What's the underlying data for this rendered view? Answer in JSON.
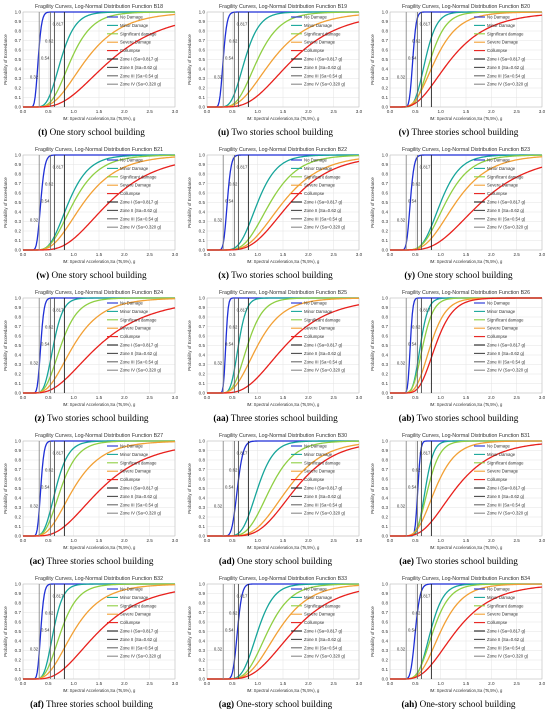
{
  "figure": {
    "common": {
      "xlabel": "IM: Spectral Acceleration,Sa (Ts,5%), g",
      "ylabel": "Probability of Exceedance",
      "xlim": [
        0,
        3
      ],
      "ylim": [
        0,
        1
      ],
      "xticks": [
        "0.0",
        "0.5",
        "1.0",
        "1.5",
        "2.0",
        "2.5",
        "3.0"
      ],
      "yticks": [
        "0.0",
        "0.1",
        "0.2",
        "0.3",
        "0.4",
        "0.5",
        "0.6",
        "0.7",
        "0.8",
        "0.9",
        "1.0"
      ],
      "legend": [
        "No Damage",
        "Minor Damage",
        "Significant damage",
        "Severe Damage",
        "Collumpse",
        "Zone I (Sa=0.817 g)",
        "Zone II (Sa=0.62 g)",
        "Zone III (Sa=0.54 g)",
        "Zone IV (Sa=0.320 g)"
      ],
      "zone_values": [
        0.817,
        0.62,
        0.54,
        0.32
      ],
      "zone_labels": [
        "0.817",
        "0.62",
        "0.54",
        "0.32"
      ],
      "colors": {
        "no_damage": "#1f2fd6",
        "minor": "#17a59a",
        "significant": "#8fcf43",
        "severe": "#f2a035",
        "collapse": "#e8201c",
        "zone1": "#222222",
        "zone2": "#4a4a4a",
        "zone3": "#6a6a6a",
        "zone4": "#8a8a8a"
      }
    }
  },
  "chart_data": [
    {
      "type": "line",
      "title": "Fragility Curves, Log-Normal Distribution Function B18",
      "caption_letter": "(t)",
      "caption_text": " One story school building",
      "medians": [
        0.3,
        0.75,
        0.95,
        1.25,
        1.75
      ],
      "betas": [
        0.18,
        0.3,
        0.35,
        0.45,
        0.5
      ]
    },
    {
      "type": "line",
      "title": "Fragility Curves, Log-Normal Distribution Function B19",
      "caption_letter": "(u)",
      "caption_text": " Two stories school building",
      "medians": [
        0.32,
        0.75,
        1.0,
        1.3,
        1.7
      ],
      "betas": [
        0.18,
        0.3,
        0.35,
        0.45,
        0.45
      ]
    },
    {
      "type": "line",
      "title": "Fragility Curves, Log-Normal Distribution Function B20",
      "caption_letter": "(v)",
      "caption_text": " Three stories school building",
      "medians": [
        0.45,
        0.7,
        0.8,
        0.9,
        1.2
      ],
      "betas": [
        0.12,
        0.25,
        0.3,
        0.4,
        0.5
      ]
    },
    {
      "type": "line",
      "title": "Fragility Curves, Log-Normal Distribution Function B21",
      "caption_letter": "(w)",
      "caption_text": " One story school building",
      "medians": [
        0.35,
        0.9,
        1.0,
        1.2,
        1.7
      ],
      "betas": [
        0.18,
        0.35,
        0.4,
        0.45,
        0.45
      ]
    },
    {
      "type": "line",
      "title": "Fragility Curves, Log-Normal Distribution Function B22",
      "caption_letter": "(x)",
      "caption_text": " Two stories school building",
      "medians": [
        0.4,
        1.0,
        1.25,
        1.5,
        1.65
      ],
      "betas": [
        0.15,
        0.3,
        0.35,
        0.4,
        0.4
      ]
    },
    {
      "type": "line",
      "title": "Fragility Curves, Log-Normal Distribution Function B23",
      "caption_letter": "(y)",
      "caption_text": " One story school building",
      "medians": [
        0.4,
        1.0,
        1.1,
        1.3,
        1.8
      ],
      "betas": [
        0.15,
        0.3,
        0.35,
        0.4,
        0.45
      ]
    },
    {
      "type": "line",
      "title": "Fragility Curves, Log-Normal Distribution Function B24",
      "caption_letter": "(z)",
      "caption_text": " Two stories school building",
      "medians": [
        0.35,
        0.6,
        0.75,
        1.0,
        1.5
      ],
      "betas": [
        0.15,
        0.25,
        0.35,
        0.45,
        0.55
      ]
    },
    {
      "type": "line",
      "title": "Fragility Curves, Log-Normal Distribution Function B25",
      "caption_letter": "(aa)",
      "caption_text": " Three stories school building",
      "medians": [
        0.37,
        0.62,
        0.8,
        1.0,
        1.55
      ],
      "betas": [
        0.1,
        0.2,
        0.3,
        0.4,
        0.45
      ]
    },
    {
      "type": "line",
      "title": "Fragility Curves, Log-Normal Distribution Function B26",
      "caption_letter": "(ab)",
      "caption_text": " Two stories school building",
      "medians": [
        0.4,
        0.6,
        0.65,
        0.8,
        0.9
      ],
      "betas": [
        0.1,
        0.2,
        0.25,
        0.3,
        0.3
      ]
    },
    {
      "type": "line",
      "title": "Fragility Curves, Log-Normal Distribution Function B27",
      "caption_letter": "(ac)",
      "caption_text": " Three stories school building",
      "medians": [
        0.35,
        0.65,
        0.75,
        1.0,
        1.55
      ],
      "betas": [
        0.15,
        0.3,
        0.35,
        0.45,
        0.5
      ]
    },
    {
      "type": "line",
      "title": "Fragility Curves, Log-Normal Distribution Function B30",
      "caption_letter": "(ad)",
      "caption_text": " One story school building",
      "medians": [
        0.6,
        1.0,
        1.25,
        1.6,
        1.75
      ],
      "betas": [
        0.15,
        0.25,
        0.3,
        0.35,
        0.35
      ]
    },
    {
      "type": "line",
      "title": "Fragility Curves, Log-Normal Distribution Function B31",
      "caption_letter": "(ae)",
      "caption_text": " Two stories school building",
      "medians": [
        0.55,
        0.7,
        0.75,
        0.9,
        1.3
      ],
      "betas": [
        0.08,
        0.18,
        0.25,
        0.35,
        0.45
      ]
    },
    {
      "type": "line",
      "title": "Fragility Curves, Log-Normal Distribution Function B32",
      "caption_letter": "(af)",
      "caption_text": " Three stories school building",
      "medians": [
        0.35,
        0.6,
        0.75,
        1.0,
        1.5
      ],
      "betas": [
        0.15,
        0.25,
        0.35,
        0.45,
        0.5
      ]
    },
    {
      "type": "line",
      "title": "Fragility Curves, Log-Normal Distribution Function B33",
      "caption_letter": "(ag)",
      "caption_text": " One-story school building",
      "medians": [
        0.6,
        1.0,
        1.2,
        1.4,
        1.7
      ],
      "betas": [
        0.12,
        0.25,
        0.3,
        0.35,
        0.4
      ]
    },
    {
      "type": "line",
      "title": "Fragility Curves, Log-Normal Distribution Function B34",
      "caption_letter": "(ah)",
      "caption_text": " One-story school building",
      "medians": [
        0.5,
        0.8,
        0.85,
        1.0,
        1.3
      ],
      "betas": [
        0.15,
        0.25,
        0.3,
        0.35,
        0.45
      ]
    }
  ]
}
